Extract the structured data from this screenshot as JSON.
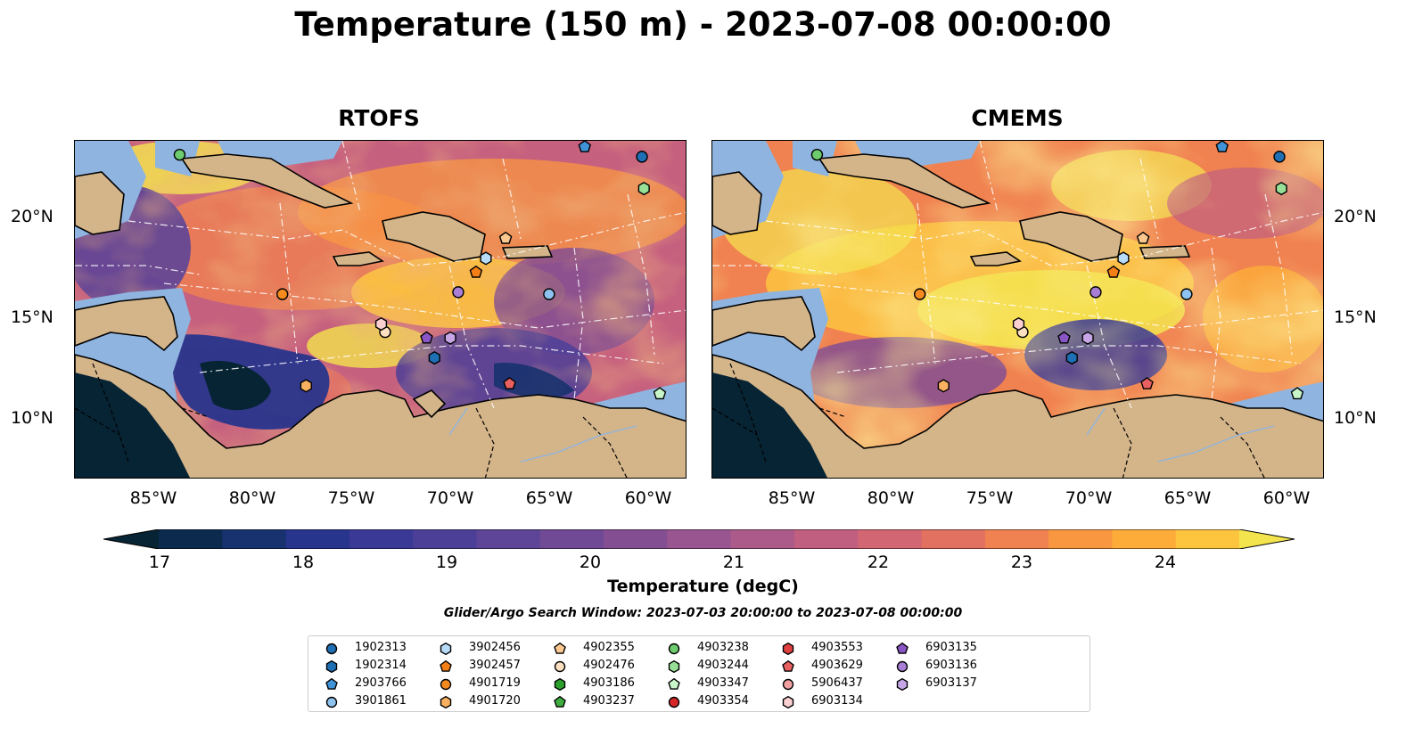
{
  "title": "Temperature (150 m) - 2023-07-08 00:00:00",
  "panels": [
    {
      "title": "RTOFS"
    },
    {
      "title": "CMEMS"
    }
  ],
  "axes": {
    "x_ticks": [
      "85°W",
      "80°W",
      "75°W",
      "70°W",
      "65°W",
      "60°W"
    ],
    "y_ticks": [
      "20°N",
      "15°N",
      "10°N"
    ],
    "lon_range": [
      -89,
      -58
    ],
    "lat_range": [
      7,
      24
    ]
  },
  "colorbar": {
    "label": "Temperature (degC)",
    "ticks": [
      "17",
      "18",
      "19",
      "20",
      "21",
      "22",
      "23",
      "24"
    ],
    "range": [
      16.75,
      24.5
    ],
    "step": 0.5,
    "colors": [
      "#072434",
      "#0b2a4e",
      "#17326e",
      "#28358c",
      "#3a3a96",
      "#4c3f98",
      "#5e4597",
      "#714a95",
      "#844f92",
      "#985590",
      "#ac5a8a",
      "#c05f80",
      "#d36673",
      "#e27162",
      "#f08150",
      "#f99640",
      "#fdac3a",
      "#fdc43e",
      "#f3e44e"
    ],
    "extend": "both"
  },
  "window_text": "Glider/Argo Search Window: 2023-07-03 20:00:00 to 2023-07-08 00:00:00",
  "land_color": "#d4b58a",
  "shelf_color": "#8fb4e0",
  "legend": [
    {
      "id": "1902313",
      "marker": "circle",
      "color": "#1f6fb4"
    },
    {
      "id": "1902314",
      "marker": "hexagon",
      "color": "#1f6fb4"
    },
    {
      "id": "2903766",
      "marker": "pentagon",
      "color": "#3f93d6"
    },
    {
      "id": "3901861",
      "marker": "circle",
      "color": "#8ec3ef"
    },
    {
      "id": "3902456",
      "marker": "hexagon",
      "color": "#b8dcf7"
    },
    {
      "id": "3902457",
      "marker": "pentagon",
      "color": "#f57f17"
    },
    {
      "id": "4901719",
      "marker": "circle",
      "color": "#f58b1f"
    },
    {
      "id": "4901720",
      "marker": "hexagon",
      "color": "#f9b060"
    },
    {
      "id": "4902355",
      "marker": "pentagon",
      "color": "#fbc890"
    },
    {
      "id": "4902476",
      "marker": "circle",
      "color": "#fde0c0"
    },
    {
      "id": "4903186",
      "marker": "hexagon",
      "color": "#2ca02c"
    },
    {
      "id": "4903237",
      "marker": "pentagon",
      "color": "#3fae3f"
    },
    {
      "id": "4903238",
      "marker": "circle",
      "color": "#6dcc6d"
    },
    {
      "id": "4903244",
      "marker": "hexagon",
      "color": "#98e098"
    },
    {
      "id": "4903347",
      "marker": "pentagon",
      "color": "#c8f5c8"
    },
    {
      "id": "4903354",
      "marker": "circle",
      "color": "#d62728"
    },
    {
      "id": "4903553",
      "marker": "hexagon",
      "color": "#e04040"
    },
    {
      "id": "4903629",
      "marker": "pentagon",
      "color": "#e86060"
    },
    {
      "id": "5906437",
      "marker": "circle",
      "color": "#f0a0a0"
    },
    {
      "id": "6903134",
      "marker": "hexagon",
      "color": "#fbd0d0"
    },
    {
      "id": "6903135",
      "marker": "pentagon",
      "color": "#8a55c4"
    },
    {
      "id": "6903136",
      "marker": "circle",
      "color": "#a97fd6"
    },
    {
      "id": "6903137",
      "marker": "hexagon",
      "color": "#c6a6e6"
    }
  ]
}
